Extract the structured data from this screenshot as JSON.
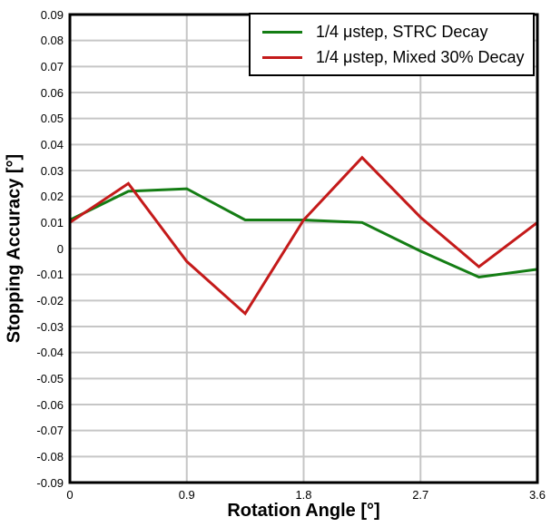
{
  "chart_data": {
    "type": "line",
    "x": [
      0,
      0.45,
      0.9,
      1.35,
      1.8,
      2.25,
      2.7,
      3.15,
      3.6
    ],
    "series": [
      {
        "name": "1/4 μstep, STRC Decay",
        "color": "#147d14",
        "values": [
          0.011,
          0.022,
          0.023,
          0.011,
          0.011,
          0.01,
          -0.001,
          -0.011,
          -0.008
        ]
      },
      {
        "name": "1/4 μstep, Mixed 30% Decay",
        "color": "#c41a1a",
        "values": [
          0.01,
          0.025,
          -0.005,
          -0.025,
          0.011,
          0.035,
          0.012,
          -0.007,
          0.01
        ]
      }
    ],
    "xlabel": "Rotation Angle [°]",
    "ylabel": "Stopping Accuracy [°]",
    "xlim": [
      0,
      3.6
    ],
    "ylim": [
      -0.09,
      0.09
    ],
    "x_tick_labels": [
      "0",
      "0.9",
      "1.8",
      "2.7",
      "3.6"
    ],
    "x_tick_values": [
      0,
      0.9,
      1.8,
      2.7,
      3.6
    ],
    "y_tick_labels": [
      "0.09",
      "0.08",
      "0.07",
      "0.06",
      "0.05",
      "0.04",
      "0.03",
      "0.02",
      "0.01",
      "0",
      "-0.01",
      "-0.02",
      "-0.03",
      "-0.04",
      "-0.05",
      "-0.06",
      "-0.07",
      "-0.08",
      "-0.09"
    ],
    "grid": true,
    "legend_position": "top-right",
    "colors": {
      "grid": "#c6c6c6",
      "axis": "#000000",
      "background": "#ffffff"
    }
  }
}
